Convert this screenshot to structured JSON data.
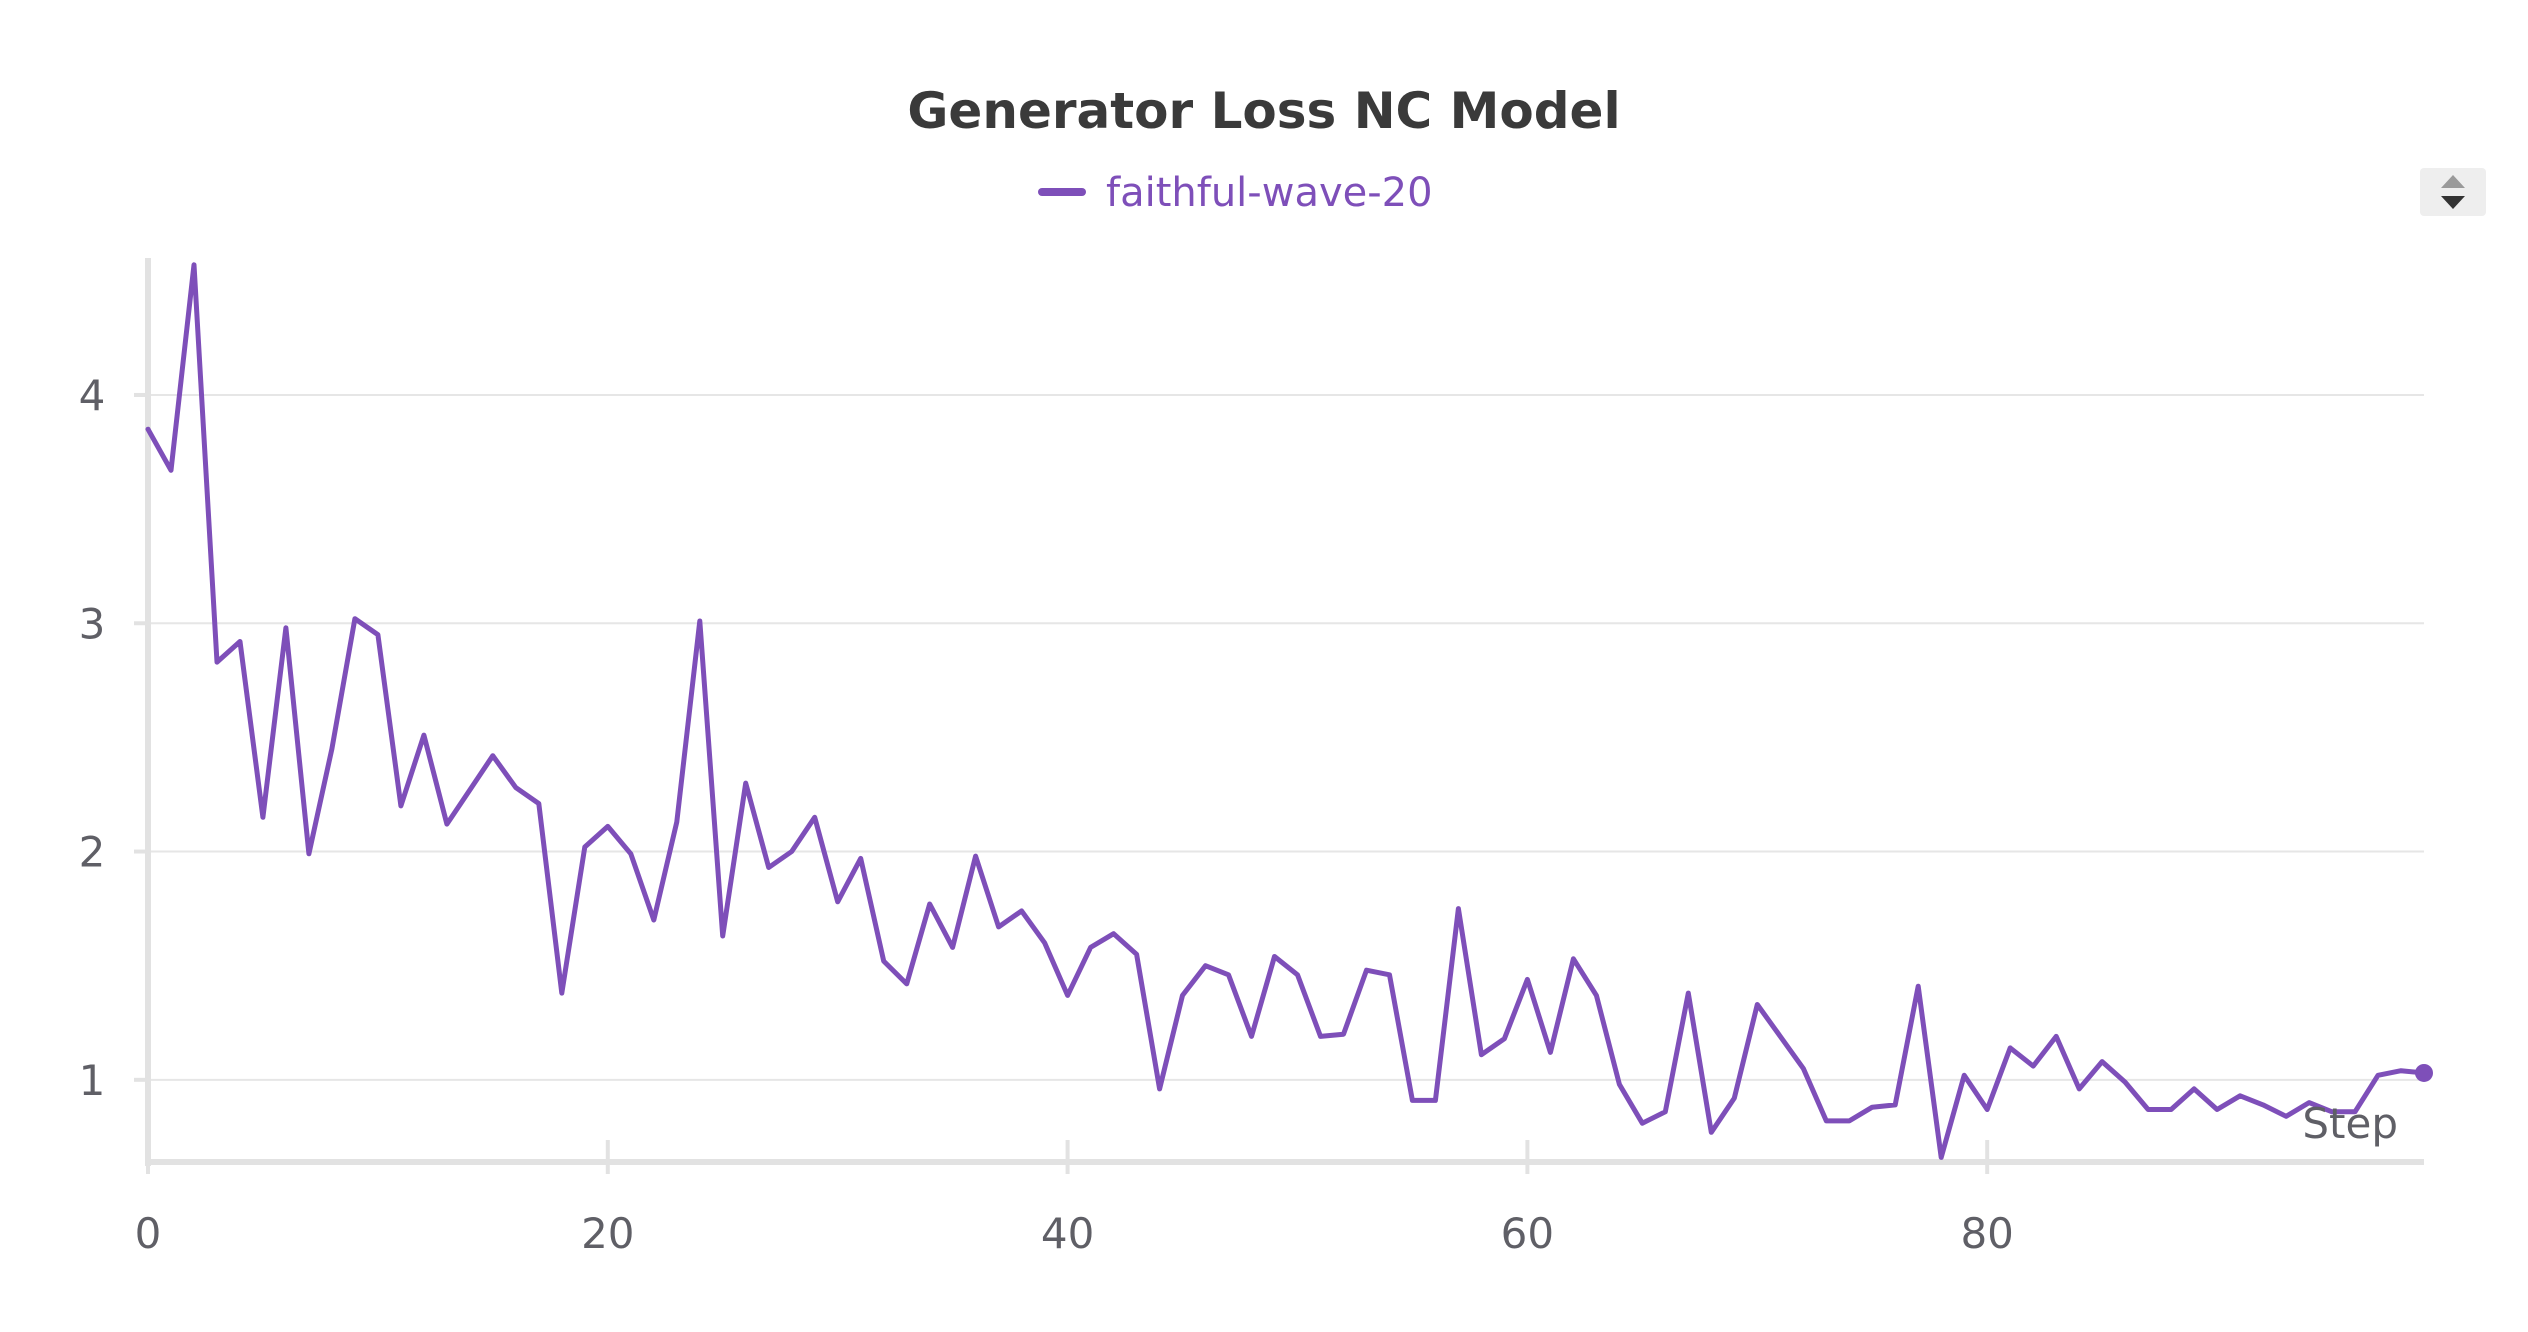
{
  "chart_data": {
    "type": "line",
    "title": "Generator Loss NC Model",
    "xlabel": "Step",
    "ylabel": "",
    "xlim": [
      0,
      99
    ],
    "ylim": [
      0.64,
      4.6
    ],
    "x_ticks": [
      "0",
      "20",
      "40",
      "60",
      "80"
    ],
    "y_ticks": [
      "1",
      "2",
      "3",
      "4"
    ],
    "grid": true,
    "legend_position": "top-center",
    "colors": {
      "series": "#7e4fb9",
      "grid": "#e6e6e6",
      "axis": "#e2e2e2",
      "title": "#3a3a3a",
      "ticks": "#5f5f66"
    },
    "series": [
      {
        "name": "faithful-wave-20",
        "x": [
          0,
          1,
          2,
          3,
          4,
          5,
          6,
          7,
          8,
          9,
          10,
          11,
          12,
          13,
          14,
          15,
          16,
          17,
          18,
          19,
          20,
          21,
          22,
          23,
          24,
          25,
          26,
          27,
          28,
          29,
          30,
          31,
          32,
          33,
          34,
          35,
          36,
          37,
          38,
          39,
          40,
          41,
          42,
          43,
          44,
          45,
          46,
          47,
          48,
          49,
          50,
          51,
          52,
          53,
          54,
          55,
          56,
          57,
          58,
          59,
          60,
          61,
          62,
          63,
          64,
          65,
          66,
          67,
          68,
          69,
          70,
          71,
          72,
          73,
          74,
          75,
          76,
          77,
          78,
          79,
          80,
          81,
          82,
          83,
          84,
          85,
          86,
          87,
          88,
          89,
          90,
          91,
          92,
          93,
          94,
          95,
          96,
          97,
          98,
          99
        ],
        "y": [
          3.85,
          3.67,
          4.57,
          2.83,
          2.92,
          2.15,
          2.98,
          1.99,
          2.45,
          3.02,
          2.95,
          2.2,
          2.51,
          2.12,
          2.27,
          2.42,
          2.28,
          2.21,
          1.38,
          2.02,
          2.11,
          1.99,
          1.7,
          2.13,
          3.01,
          1.63,
          2.3,
          1.93,
          2.0,
          2.15,
          1.78,
          1.97,
          1.52,
          1.42,
          1.77,
          1.58,
          1.98,
          1.67,
          1.74,
          1.6,
          1.37,
          1.58,
          1.64,
          1.55,
          0.96,
          1.37,
          1.5,
          1.46,
          1.19,
          1.54,
          1.46,
          1.19,
          1.2,
          1.48,
          1.46,
          0.91,
          0.91,
          1.75,
          1.11,
          1.18,
          1.44,
          1.12,
          1.53,
          1.37,
          0.98,
          0.81,
          0.86,
          1.38,
          0.77,
          0.92,
          1.33,
          1.19,
          1.05,
          0.82,
          0.82,
          0.88,
          0.89,
          1.41,
          0.66,
          1.02,
          0.87,
          1.14,
          1.06,
          1.19,
          0.96,
          1.08,
          0.99,
          0.87,
          0.87,
          0.96,
          0.87,
          0.93,
          0.89,
          0.84,
          0.9,
          0.86,
          0.86,
          1.02,
          1.04,
          1.03
        ]
      }
    ]
  }
}
